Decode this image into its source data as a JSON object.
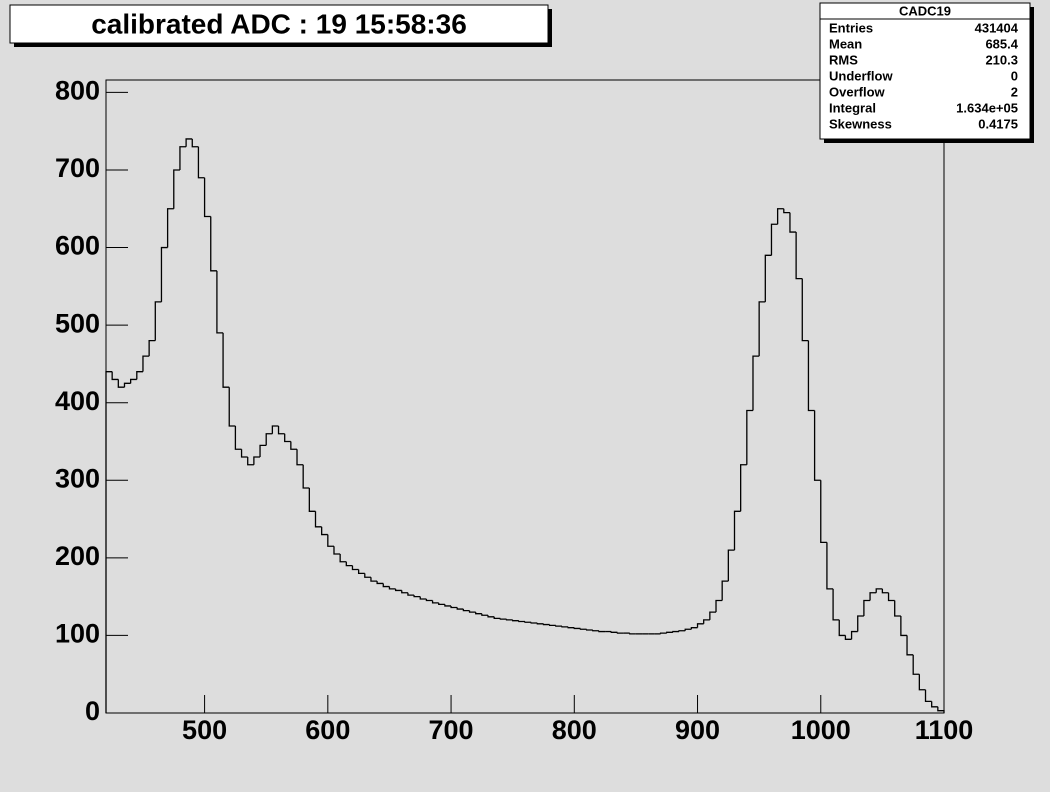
{
  "chart_data": {
    "type": "histogram",
    "title": "calibrated ADC :  19  15:58:36",
    "color": "#000000",
    "bins": [
      420,
      425,
      430,
      435,
      440,
      445,
      450,
      455,
      460,
      465,
      470,
      475,
      480,
      485,
      490,
      495,
      500,
      505,
      510,
      515,
      520,
      525,
      530,
      535,
      540,
      545,
      550,
      555,
      560,
      565,
      570,
      575,
      580,
      585,
      590,
      595,
      600,
      605,
      610,
      615,
      620,
      625,
      630,
      635,
      640,
      645,
      650,
      655,
      660,
      665,
      670,
      675,
      680,
      685,
      690,
      695,
      700,
      705,
      710,
      715,
      720,
      725,
      730,
      735,
      740,
      745,
      750,
      755,
      760,
      765,
      770,
      775,
      780,
      785,
      790,
      795,
      800,
      805,
      810,
      815,
      820,
      825,
      830,
      835,
      840,
      845,
      850,
      855,
      860,
      865,
      870,
      875,
      880,
      885,
      890,
      895,
      900,
      905,
      910,
      915,
      920,
      925,
      930,
      935,
      940,
      945,
      950,
      955,
      960,
      965,
      970,
      975,
      980,
      985,
      990,
      995,
      1000,
      1005,
      1010,
      1015,
      1020,
      1025,
      1030,
      1035,
      1040,
      1045,
      1050,
      1055,
      1060,
      1065,
      1070,
      1075,
      1080,
      1085,
      1090,
      1095,
      1100
    ],
    "values": [
      440,
      430,
      420,
      425,
      430,
      440,
      460,
      480,
      530,
      600,
      650,
      700,
      730,
      740,
      730,
      690,
      640,
      570,
      490,
      420,
      370,
      340,
      330,
      320,
      330,
      345,
      360,
      370,
      360,
      350,
      340,
      320,
      290,
      260,
      240,
      230,
      215,
      205,
      195,
      190,
      185,
      180,
      175,
      170,
      167,
      163,
      160,
      158,
      155,
      152,
      150,
      147,
      145,
      142,
      140,
      138,
      136,
      134,
      132,
      130,
      128,
      126,
      124,
      122,
      121,
      120,
      119,
      118,
      117,
      116,
      115,
      114,
      113,
      112,
      111,
      110,
      109,
      108,
      107,
      106,
      105,
      105,
      104,
      103,
      103,
      102,
      102,
      102,
      102,
      102,
      103,
      104,
      105,
      106,
      108,
      110,
      115,
      120,
      130,
      145,
      170,
      210,
      260,
      320,
      390,
      460,
      530,
      590,
      630,
      650,
      645,
      620,
      560,
      480,
      390,
      300,
      220,
      160,
      120,
      100,
      95,
      105,
      125,
      145,
      155,
      160,
      155,
      145,
      125,
      100,
      75,
      50,
      30,
      15,
      8,
      3
    ],
    "xlim": [
      420,
      1100
    ],
    "ylim": [
      0,
      816
    ],
    "xticks": [
      500,
      600,
      700,
      800,
      900,
      1000,
      1100
    ],
    "yticks": [
      0,
      100,
      200,
      300,
      400,
      500,
      600,
      700,
      800
    ],
    "stats": {
      "title": "CADC19",
      "rows": [
        {
          "name": "Entries",
          "value": "431404"
        },
        {
          "name": "Mean",
          "value": "685.4"
        },
        {
          "name": "RMS",
          "value": "210.3"
        },
        {
          "name": "Underflow",
          "value": "0"
        },
        {
          "name": "Overflow",
          "value": "2"
        },
        {
          "name": "Integral",
          "value": "1.634e+05"
        },
        {
          "name": "Skewness",
          "value": "0.4175"
        }
      ]
    }
  }
}
